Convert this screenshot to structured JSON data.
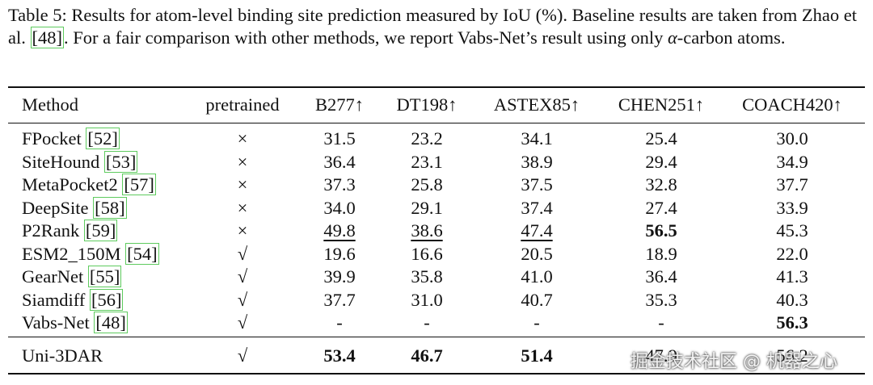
{
  "caption": {
    "part1": "Table 5: Results for atom-level binding site prediction measured by IoU (%). Baseline results are taken from Zhao et al. ",
    "ref": "[48]",
    "part2": ". For a fair comparison with other methods, we report Vabs-Net’s result using only ",
    "alpha": "α",
    "part3": "-carbon atoms."
  },
  "table": {
    "header": [
      "Method",
      "pretrained",
      "B277↑",
      "DT198↑",
      "ASTEX85↑",
      "CHEN251↑",
      "COACH420↑"
    ],
    "rows": [
      {
        "method": "FPocket",
        "ref": "[52]",
        "pretrained": "×",
        "values": [
          "31.5",
          "23.2",
          "34.1",
          "25.4",
          "30.0"
        ]
      },
      {
        "method": "SiteHound",
        "ref": "[53]",
        "pretrained": "×",
        "values": [
          "36.4",
          "23.1",
          "38.9",
          "29.4",
          "34.9"
        ]
      },
      {
        "method": "MetaPocket2",
        "ref": "[57]",
        "pretrained": "×",
        "values": [
          "37.3",
          "25.8",
          "37.5",
          "32.8",
          "37.7"
        ]
      },
      {
        "method": "DeepSite",
        "ref": "[58]",
        "pretrained": "×",
        "values": [
          "34.0",
          "29.1",
          "37.4",
          "27.4",
          "33.9"
        ]
      },
      {
        "method": "P2Rank",
        "ref": "[59]",
        "pretrained": "×",
        "values": [
          "49.8",
          "38.6",
          "47.4",
          "56.5",
          "45.3"
        ]
      },
      {
        "method": "ESM2_150M",
        "ref": "[54]",
        "pretrained": "√",
        "values": [
          "19.6",
          "16.6",
          "20.5",
          "18.9",
          "22.0"
        ]
      },
      {
        "method": "GearNet",
        "ref": "[55]",
        "pretrained": "√",
        "values": [
          "39.9",
          "35.8",
          "41.0",
          "36.4",
          "41.3"
        ]
      },
      {
        "method": "Siamdiff",
        "ref": "[56]",
        "pretrained": "√",
        "values": [
          "37.7",
          "31.0",
          "40.7",
          "35.3",
          "40.3"
        ]
      },
      {
        "method": "Vabs-Net",
        "ref": "[48]",
        "pretrained": "√",
        "values": [
          "-",
          "-",
          "-",
          "-",
          "56.3"
        ]
      }
    ],
    "final_row": {
      "method": "Uni-3DAR",
      "pretrained": "√",
      "values": [
        "53.4",
        "46.7",
        "51.4",
        "47.9",
        "56.2"
      ]
    }
  },
  "watermark": "掘金技术社区 @ 机器之心"
}
